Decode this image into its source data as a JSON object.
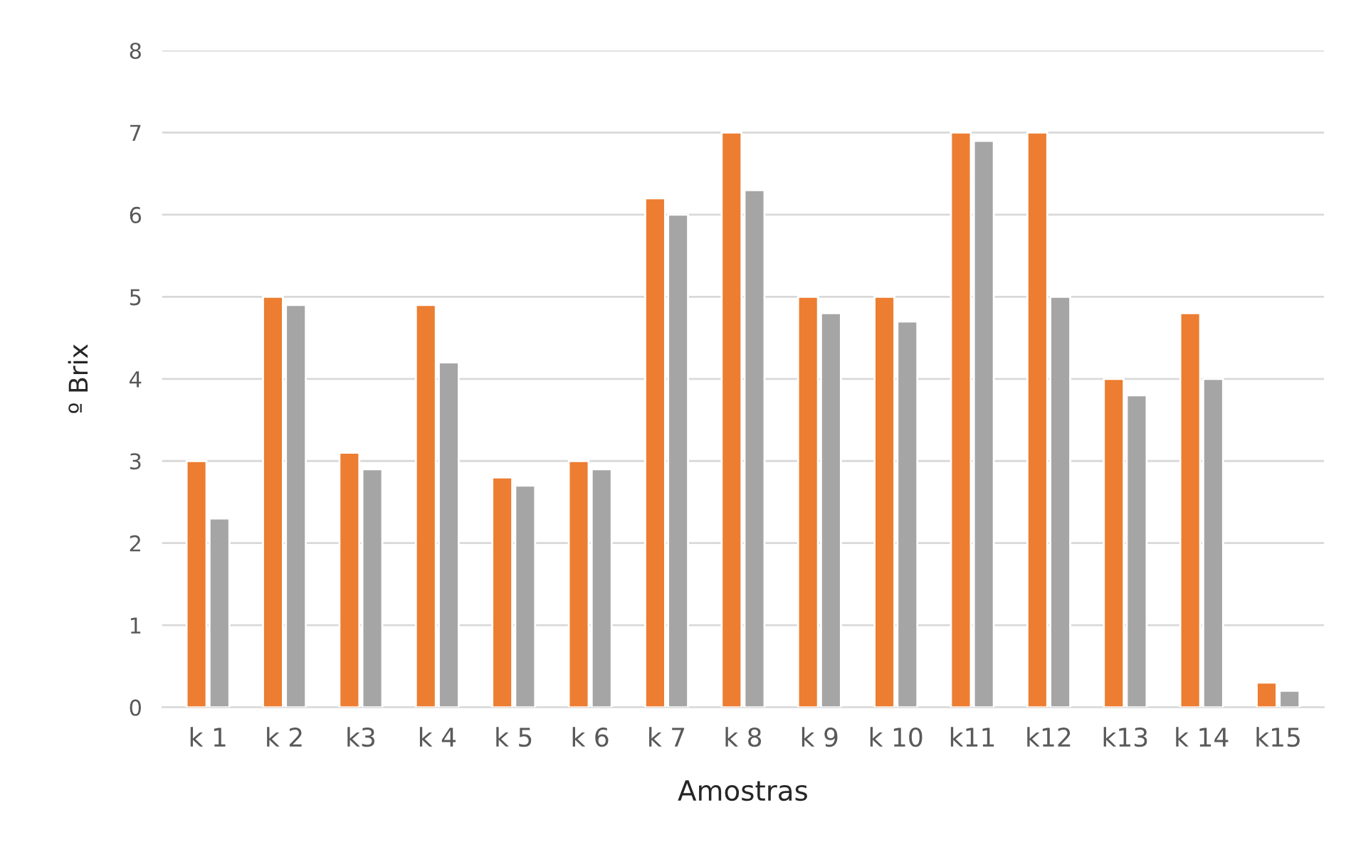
{
  "chart_data": {
    "type": "bar",
    "xlabel": "Amostras",
    "ylabel": "º Brix",
    "categories": [
      "k 1",
      "k 2",
      "k3",
      "k 4",
      "k 5",
      "k 6",
      "k 7",
      "k 8",
      "k 9",
      "k 10",
      "k11",
      "k12",
      "k13",
      "k 14",
      "k15"
    ],
    "series": [
      {
        "color": "#ed7d31",
        "values": [
          3.0,
          5.0,
          3.1,
          4.9,
          2.8,
          3.0,
          6.2,
          7.0,
          5.0,
          5.0,
          7.0,
          7.0,
          4.0,
          4.8,
          0.3
        ]
      },
      {
        "color": "#a5a5a5",
        "values": [
          2.3,
          4.9,
          2.9,
          4.2,
          2.7,
          2.9,
          6.0,
          6.3,
          4.8,
          4.7,
          6.9,
          5.0,
          3.8,
          4.0,
          0.2
        ]
      }
    ],
    "ylim": [
      0,
      8
    ],
    "yticks": [
      0,
      1,
      2,
      3,
      4,
      5,
      6,
      7,
      8
    ],
    "grid": "y"
  }
}
